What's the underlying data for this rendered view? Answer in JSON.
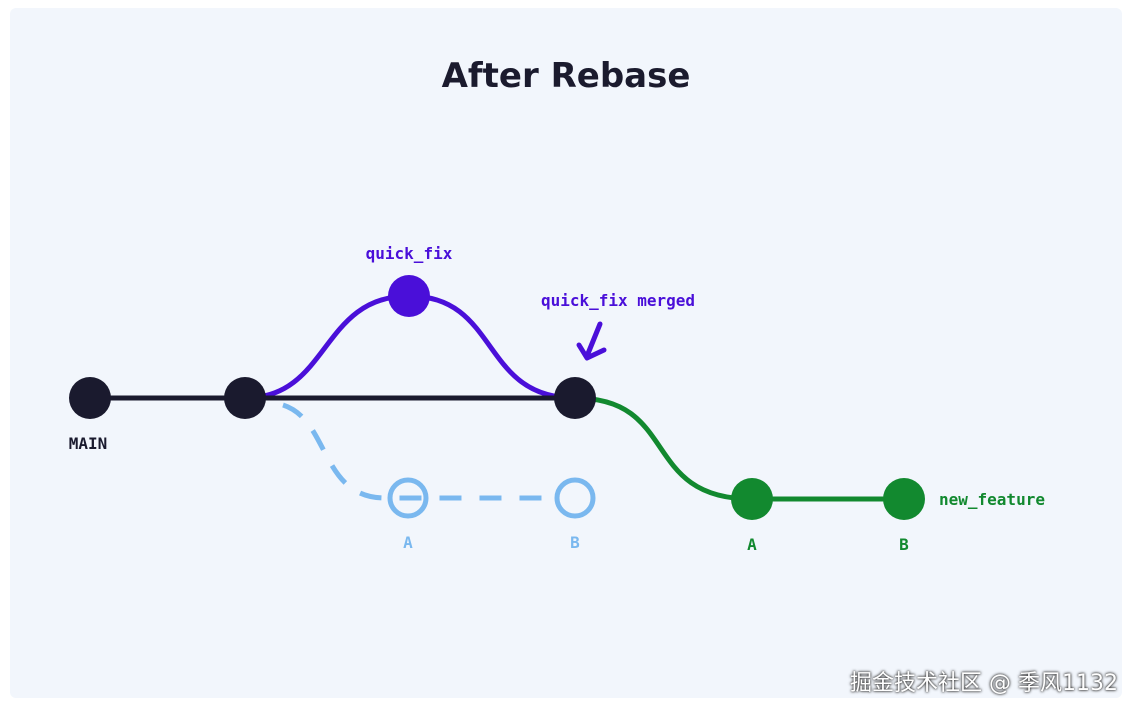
{
  "title": "After Rebase",
  "colors": {
    "main": "#1a1a2e",
    "quick_fix": "#4a0fd9",
    "old_commits": "#7ab8ef",
    "new_feature": "#12892f",
    "background": "#f2f6fc"
  },
  "labels": {
    "main": "MAIN",
    "quick_fix": "quick_fix",
    "quick_fix_merged": "quick_fix merged",
    "old_a": "A",
    "old_b": "B",
    "new_a": "A",
    "new_b": "B",
    "new_feature": "new_feature"
  },
  "watermark": "掘金技术社区 @ 季风1132"
}
